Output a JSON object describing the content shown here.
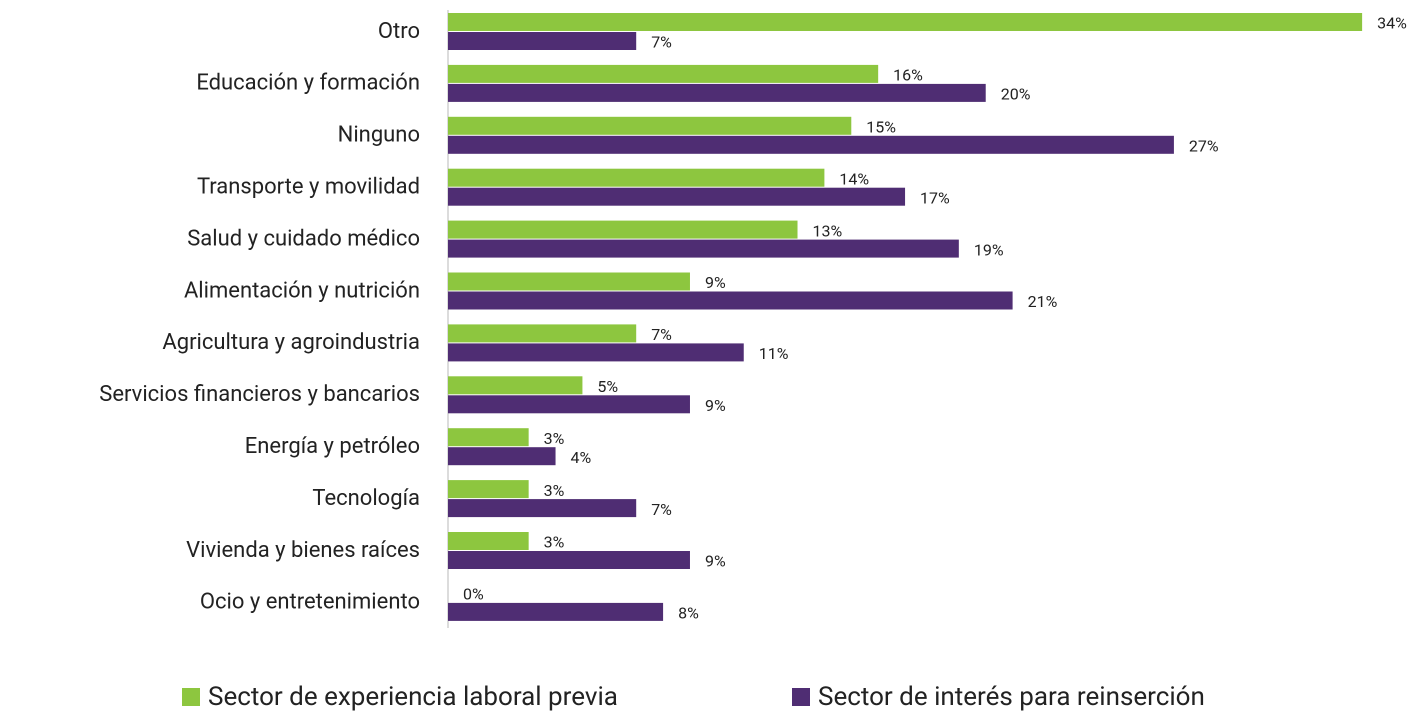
{
  "chart_data": {
    "type": "hbar",
    "categories": [
      "Otro",
      "Educación y formación",
      "Ninguno",
      "Transporte y movilidad",
      "Salud y cuidado médico",
      "Alimentación y nutrición",
      "Agricultura y agroindustria",
      "Servicios financieros y bancarios",
      "Energía y petróleo",
      "Tecnología",
      "Vivienda y bienes raíces",
      "Ocio y entretenimiento"
    ],
    "series": [
      {
        "name": "Sector de experiencia laboral previa",
        "color": "#8dc63f",
        "values": [
          34,
          16,
          15,
          14,
          13,
          9,
          7,
          5,
          3,
          3,
          3,
          0
        ],
        "value_labels": [
          "34%",
          "16%",
          "15%",
          "14%",
          "13%",
          "9%",
          "7%",
          "5%",
          "3%",
          "3%",
          "3%",
          "0%"
        ]
      },
      {
        "name": "Sector de interés para reinserción",
        "color": "#4f2d73",
        "values": [
          7,
          20,
          27,
          17,
          19,
          21,
          11,
          9,
          4,
          7,
          9,
          8
        ],
        "value_labels": [
          "7%",
          "20%",
          "27%",
          "17%",
          "19%",
          "21%",
          "11%",
          "9%",
          "4%",
          "7%",
          "9%",
          "8%"
        ]
      }
    ],
    "xlim": [
      0,
      35
    ],
    "legend": "bottom"
  }
}
